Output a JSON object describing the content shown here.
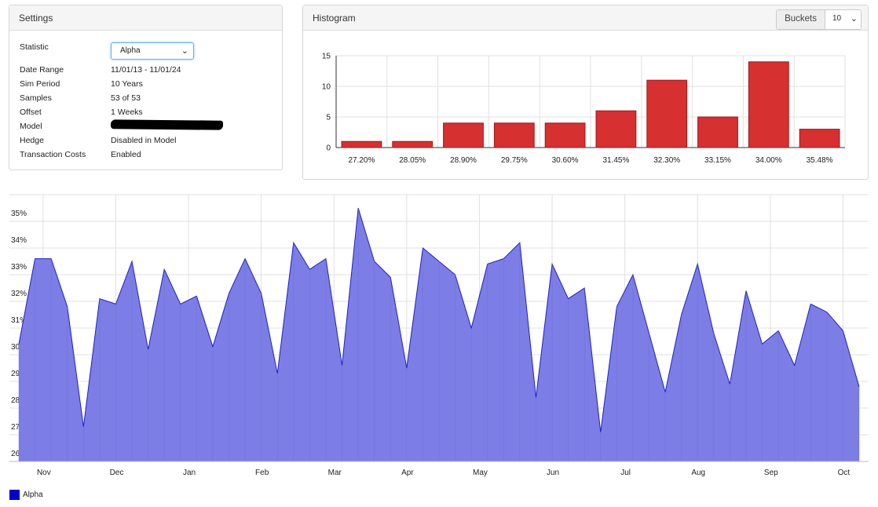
{
  "settings": {
    "title": "Settings",
    "statistic_label": "Statistic",
    "statistic_value": "Alpha",
    "rows": [
      {
        "label": "Date Range",
        "value": "11/01/13 - 11/01/24"
      },
      {
        "label": "Sim Period",
        "value": "10 Years"
      },
      {
        "label": "Samples",
        "value": "53 of 53"
      },
      {
        "label": "Offset",
        "value": "1 Weeks"
      },
      {
        "label": "Model",
        "value": ""
      },
      {
        "label": "Hedge",
        "value": "Disabled in Model"
      },
      {
        "label": "Transaction Costs",
        "value": "Enabled"
      }
    ]
  },
  "histogram": {
    "title": "Histogram",
    "buckets_label": "Buckets",
    "buckets_value": "10"
  },
  "legend": {
    "label": "Alpha"
  },
  "colors": {
    "histogram_bar": "#d63031",
    "area_fill": "#7d7de6",
    "area_line": "#2020c0",
    "legend": "#0000cc"
  },
  "icons": [
    "chevron-down-icon"
  ],
  "chart_data": [
    {
      "type": "bar",
      "title": "Histogram",
      "categories": [
        "27.20%",
        "28.05%",
        "28.90%",
        "29.75%",
        "30.60%",
        "31.45%",
        "32.30%",
        "33.15%",
        "34.00%",
        "35.48%"
      ],
      "values": [
        1,
        1,
        4,
        4,
        4,
        6,
        11,
        5,
        14,
        3
      ],
      "ylim": [
        0,
        15
      ],
      "yticks": [
        0,
        5,
        10,
        15
      ],
      "grid": true
    },
    {
      "type": "area",
      "series": [
        {
          "name": "Alpha",
          "values": [
            30.4,
            33.6,
            33.6,
            31.8,
            27.3,
            32.1,
            31.9,
            33.5,
            30.2,
            33.2,
            31.9,
            32.2,
            30.3,
            32.3,
            33.6,
            32.3,
            29.3,
            34.2,
            33.2,
            33.6,
            29.6,
            35.5,
            33.5,
            32.9,
            29.5,
            34.0,
            33.5,
            33.0,
            31.0,
            33.4,
            33.6,
            34.2,
            28.4,
            33.4,
            32.1,
            32.5,
            27.1,
            31.8,
            33.0,
            30.8,
            28.6,
            31.5,
            33.4,
            30.8,
            28.9,
            32.4,
            30.4,
            30.9,
            29.6,
            31.9,
            31.6,
            30.9,
            28.8
          ]
        }
      ],
      "x_labels": [
        "Nov",
        "Dec",
        "Jan",
        "Feb",
        "Mar",
        "Apr",
        "May",
        "Jun",
        "Jul",
        "Aug",
        "Sep",
        "Oct"
      ],
      "yticks": [
        "26%",
        "27%",
        "28%",
        "29%",
        "30%",
        "31%",
        "32%",
        "33%",
        "34%",
        "35%"
      ],
      "ylim": [
        26,
        36
      ],
      "grid": true,
      "legend_position": "bottom-left"
    }
  ]
}
